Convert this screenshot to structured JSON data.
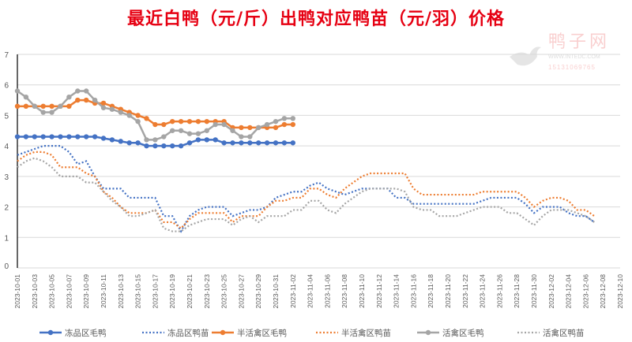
{
  "title": "最近白鸭（元/斤）出鸭对应鸭苗（元/羽）价格",
  "watermark": {
    "name": "鸭子网",
    "url": "WWW.INTEDC.COM",
    "phone": "15131069765"
  },
  "colors": {
    "blue": "#4472c4",
    "orange": "#ed7d31",
    "gray": "#a5a5a5"
  },
  "chart_data": {
    "type": "line",
    "title": "最近白鸭（元/斤）出鸭对应鸭苗（元/羽）价格",
    "x_start": "2023-10-01",
    "x_end": "2023-12-10",
    "x_ticks": [
      "2023-10-01",
      "2023-10-03",
      "2023-10-05",
      "2023-10-07",
      "2023-10-09",
      "2023-10-11",
      "2023-10-13",
      "2023-10-15",
      "2023-10-17",
      "2023-10-19",
      "2023-10-21",
      "2023-10-23",
      "2023-10-25",
      "2023-10-27",
      "2023-10-29",
      "2023-10-31",
      "2023-11-02",
      "2023-11-04",
      "2023-11-06",
      "2023-11-08",
      "2023-11-10",
      "2023-11-12",
      "2023-11-14",
      "2023-11-16",
      "2023-11-18",
      "2023-11-20",
      "2023-11-22",
      "2023-11-24",
      "2023-11-26",
      "2023-11-28",
      "2023-11-30",
      "2023-12-02",
      "2023-12-04",
      "2023-12-06",
      "2023-12-08",
      "2023-12-10"
    ],
    "ylim": [
      0,
      7
    ],
    "y_ticks": [
      "0",
      "1",
      "2",
      "3",
      "4",
      "5",
      "6",
      "7"
    ],
    "grid": true,
    "legend_position": "bottom",
    "series": [
      {
        "name": "冻品区毛鸭",
        "color": "#4472c4",
        "style": "solid",
        "values": [
          4.3,
          4.3,
          4.3,
          4.3,
          4.3,
          4.3,
          4.3,
          4.3,
          4.3,
          4.3,
          4.25,
          4.2,
          4.15,
          4.1,
          4.1,
          4.0,
          4.0,
          4.0,
          4.0,
          4.0,
          4.1,
          4.2,
          4.2,
          4.2,
          4.1,
          4.1,
          4.1,
          4.1,
          4.1,
          4.1,
          4.1,
          4.1,
          4.1
        ]
      },
      {
        "name": "冻品区鸭苗",
        "color": "#4472c4",
        "style": "dotted",
        "values": [
          3.7,
          3.8,
          3.9,
          4.0,
          4.0,
          4.0,
          3.8,
          3.4,
          3.5,
          3.0,
          2.6,
          2.6,
          2.6,
          2.3,
          2.3,
          2.3,
          2.3,
          1.7,
          1.7,
          1.2,
          1.7,
          1.9,
          2.0,
          2.0,
          2.0,
          1.7,
          1.8,
          1.9,
          1.9,
          2.0,
          2.3,
          2.4,
          2.5,
          2.5,
          2.7,
          2.8,
          2.6,
          2.5,
          2.4,
          2.5,
          2.6,
          2.6,
          2.6,
          2.6,
          2.3,
          2.3,
          2.1,
          2.1,
          2.1,
          2.1,
          2.1,
          2.1,
          2.1,
          2.1,
          2.2,
          2.3,
          2.3,
          2.3,
          2.3,
          2.1,
          1.8,
          2.0,
          2.0,
          2.0,
          1.8,
          1.7,
          1.7,
          1.5
        ]
      },
      {
        "name": "半活禽区毛鸭",
        "color": "#ed7d31",
        "style": "solid",
        "values": [
          5.3,
          5.3,
          5.3,
          5.3,
          5.3,
          5.3,
          5.3,
          5.5,
          5.5,
          5.4,
          5.4,
          5.3,
          5.2,
          5.1,
          5.0,
          4.9,
          4.7,
          4.7,
          4.8,
          4.8,
          4.8,
          4.8,
          4.8,
          4.8,
          4.8,
          4.6,
          4.6,
          4.6,
          4.6,
          4.6,
          4.6,
          4.7,
          4.7
        ]
      },
      {
        "name": "半活禽区鸭苗",
        "color": "#ed7d31",
        "style": "dotted",
        "values": [
          3.5,
          3.7,
          3.8,
          3.8,
          3.7,
          3.3,
          3.3,
          3.3,
          3.1,
          3.0,
          2.5,
          2.3,
          2.0,
          1.8,
          1.8,
          1.8,
          1.9,
          1.5,
          1.5,
          1.3,
          1.6,
          1.8,
          1.8,
          1.8,
          1.8,
          1.5,
          1.7,
          1.7,
          1.7,
          2.0,
          2.2,
          2.2,
          2.3,
          2.3,
          2.6,
          2.6,
          2.4,
          2.3,
          2.6,
          2.8,
          3.0,
          3.1,
          3.1,
          3.1,
          3.1,
          3.1,
          2.6,
          2.4,
          2.4,
          2.4,
          2.4,
          2.4,
          2.4,
          2.4,
          2.5,
          2.5,
          2.5,
          2.5,
          2.5,
          2.3,
          2.0,
          2.2,
          2.3,
          2.3,
          2.2,
          1.9,
          1.9,
          1.7
        ]
      },
      {
        "name": "活禽区毛鸭",
        "color": "#a5a5a5",
        "style": "solid",
        "values": [
          5.8,
          5.6,
          5.3,
          5.1,
          5.1,
          5.3,
          5.6,
          5.8,
          5.8,
          5.5,
          5.25,
          5.2,
          5.1,
          5.0,
          4.8,
          4.2,
          4.2,
          4.3,
          4.5,
          4.5,
          4.4,
          4.4,
          4.5,
          4.7,
          4.7,
          4.5,
          4.3,
          4.3,
          4.6,
          4.7,
          4.8,
          4.9,
          4.9
        ]
      },
      {
        "name": "活禽区鸭苗",
        "color": "#a5a5a5",
        "style": "dotted",
        "values": [
          3.3,
          3.5,
          3.6,
          3.5,
          3.3,
          3.0,
          3.0,
          3.0,
          2.8,
          2.8,
          2.5,
          2.2,
          2.0,
          1.7,
          1.7,
          1.8,
          1.9,
          1.3,
          1.2,
          1.2,
          1.4,
          1.5,
          1.6,
          1.6,
          1.6,
          1.4,
          1.6,
          1.7,
          1.5,
          1.7,
          1.7,
          1.7,
          1.9,
          1.9,
          2.2,
          2.2,
          1.9,
          1.8,
          2.1,
          2.3,
          2.5,
          2.6,
          2.6,
          2.6,
          2.6,
          2.5,
          2.0,
          1.9,
          1.9,
          1.7,
          1.7,
          1.7,
          1.8,
          1.9,
          2.0,
          2.0,
          2.0,
          1.8,
          1.8,
          1.6,
          1.4,
          1.7,
          1.9,
          1.9,
          1.9,
          1.8,
          1.7,
          1.5
        ]
      }
    ]
  }
}
